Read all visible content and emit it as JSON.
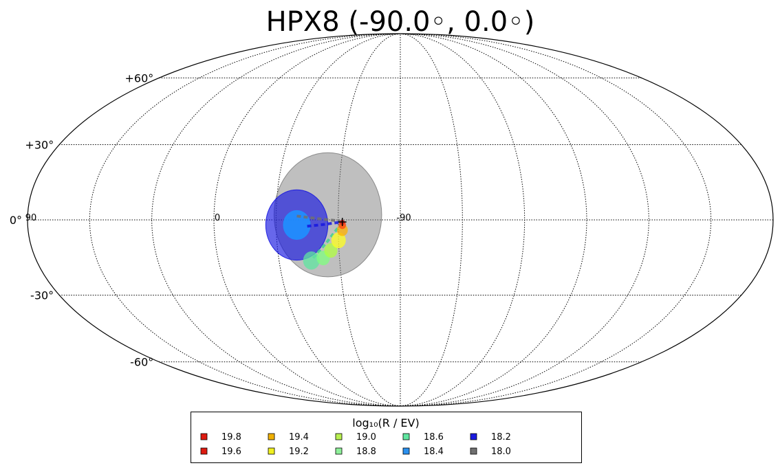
{
  "chart_data": {
    "type": "scatter",
    "projection": "mollweide",
    "title": "HPX8 (-90.0◦, 0.0◦)",
    "center_lon": -90.0,
    "center_lat": 0.0,
    "grid": true,
    "lat_ticks": [
      {
        "lat": 60,
        "label": "+60°"
      },
      {
        "lat": 30,
        "label": "+30°"
      },
      {
        "lat": 0,
        "label": "0°"
      },
      {
        "lat": -30,
        "label": "-30°"
      },
      {
        "lat": -60,
        "label": "-60°"
      }
    ],
    "lon_ticks": [
      {
        "lon": 90,
        "label": "90"
      },
      {
        "lon": 0,
        "label": "0"
      },
      {
        "lon": -90,
        "label": "-90"
      }
    ],
    "regions": [
      {
        "name": "18.0",
        "color": "#808080",
        "opacity": 0.5,
        "lon": -55,
        "lat": 2,
        "rx_deg": 26,
        "ry_deg": 30
      },
      {
        "name": "18.2",
        "color": "#1515e0",
        "opacity": 0.65,
        "lon": -40,
        "lat": -2,
        "rx_deg": 15,
        "ry_deg": 17
      },
      {
        "name": "18.4",
        "color": "#1e90ff",
        "opacity": 0.9,
        "lon": -40,
        "lat": -2,
        "rx_deg": 6.5,
        "ry_deg": 7
      }
    ],
    "spots": [
      {
        "name": "18.6",
        "color": "#5fe6a0",
        "lon": -46,
        "lat": -16,
        "r_deg": 4
      },
      {
        "name": "18.8",
        "color": "#7fff7f",
        "lon": -52,
        "lat": -15,
        "r_deg": 3.2
      },
      {
        "name": "19.0",
        "color": "#b0ff40",
        "lon": -56,
        "lat": -12,
        "r_deg": 3.2
      },
      {
        "name": "19.2",
        "color": "#ffff20",
        "lon": -60,
        "lat": -8,
        "r_deg": 3.5
      },
      {
        "name": "19.4",
        "color": "#ffb000",
        "lon": -62,
        "lat": -4,
        "r_deg": 2.6
      },
      {
        "name": "19.6",
        "color": "#ff4010",
        "lon": -62,
        "lat": -2,
        "r_deg": 1.8
      },
      {
        "name": "19.8",
        "color": "#dd1a10",
        "lon": -62,
        "lat": -1,
        "r_deg": 1.2
      }
    ],
    "tracks": [
      {
        "name": "18.0",
        "color": "#707070",
        "points": [
          [
            -40,
            1.5
          ],
          [
            -50,
            0.5
          ],
          [
            -58,
            -0.2
          ],
          [
            -62,
            -0.8
          ]
        ]
      },
      {
        "name": "18.2",
        "color": "#1515e0",
        "points": [
          [
            -45,
            -2.5
          ],
          [
            -53,
            -1.8
          ],
          [
            -60,
            -1.0
          ],
          [
            -62,
            -0.8
          ]
        ]
      },
      {
        "name": "18.6",
        "color": "#40d090",
        "points": [
          [
            -47,
            -15
          ],
          [
            -54,
            -9
          ],
          [
            -59,
            -4
          ],
          [
            -62,
            -1
          ]
        ]
      }
    ],
    "source": {
      "lon": -62,
      "lat": -0.8,
      "marker": "+"
    },
    "legend": {
      "title": "log₁₀(R / EV)",
      "placement": "bottom-center",
      "entries": [
        {
          "label": "19.8",
          "color": "#dd1a10"
        },
        {
          "label": "19.6",
          "color": "#dd1a10"
        },
        {
          "label": "19.4",
          "color": "#f0b000"
        },
        {
          "label": "19.2",
          "color": "#f0f020"
        },
        {
          "label": "19.0",
          "color": "#b8f050"
        },
        {
          "label": "18.8",
          "color": "#8ef09a"
        },
        {
          "label": "18.6",
          "color": "#60e6a0"
        },
        {
          "label": "18.4",
          "color": "#2a90ee"
        },
        {
          "label": "18.2",
          "color": "#1a1ae0"
        },
        {
          "label": "18.0",
          "color": "#707070"
        }
      ]
    }
  }
}
